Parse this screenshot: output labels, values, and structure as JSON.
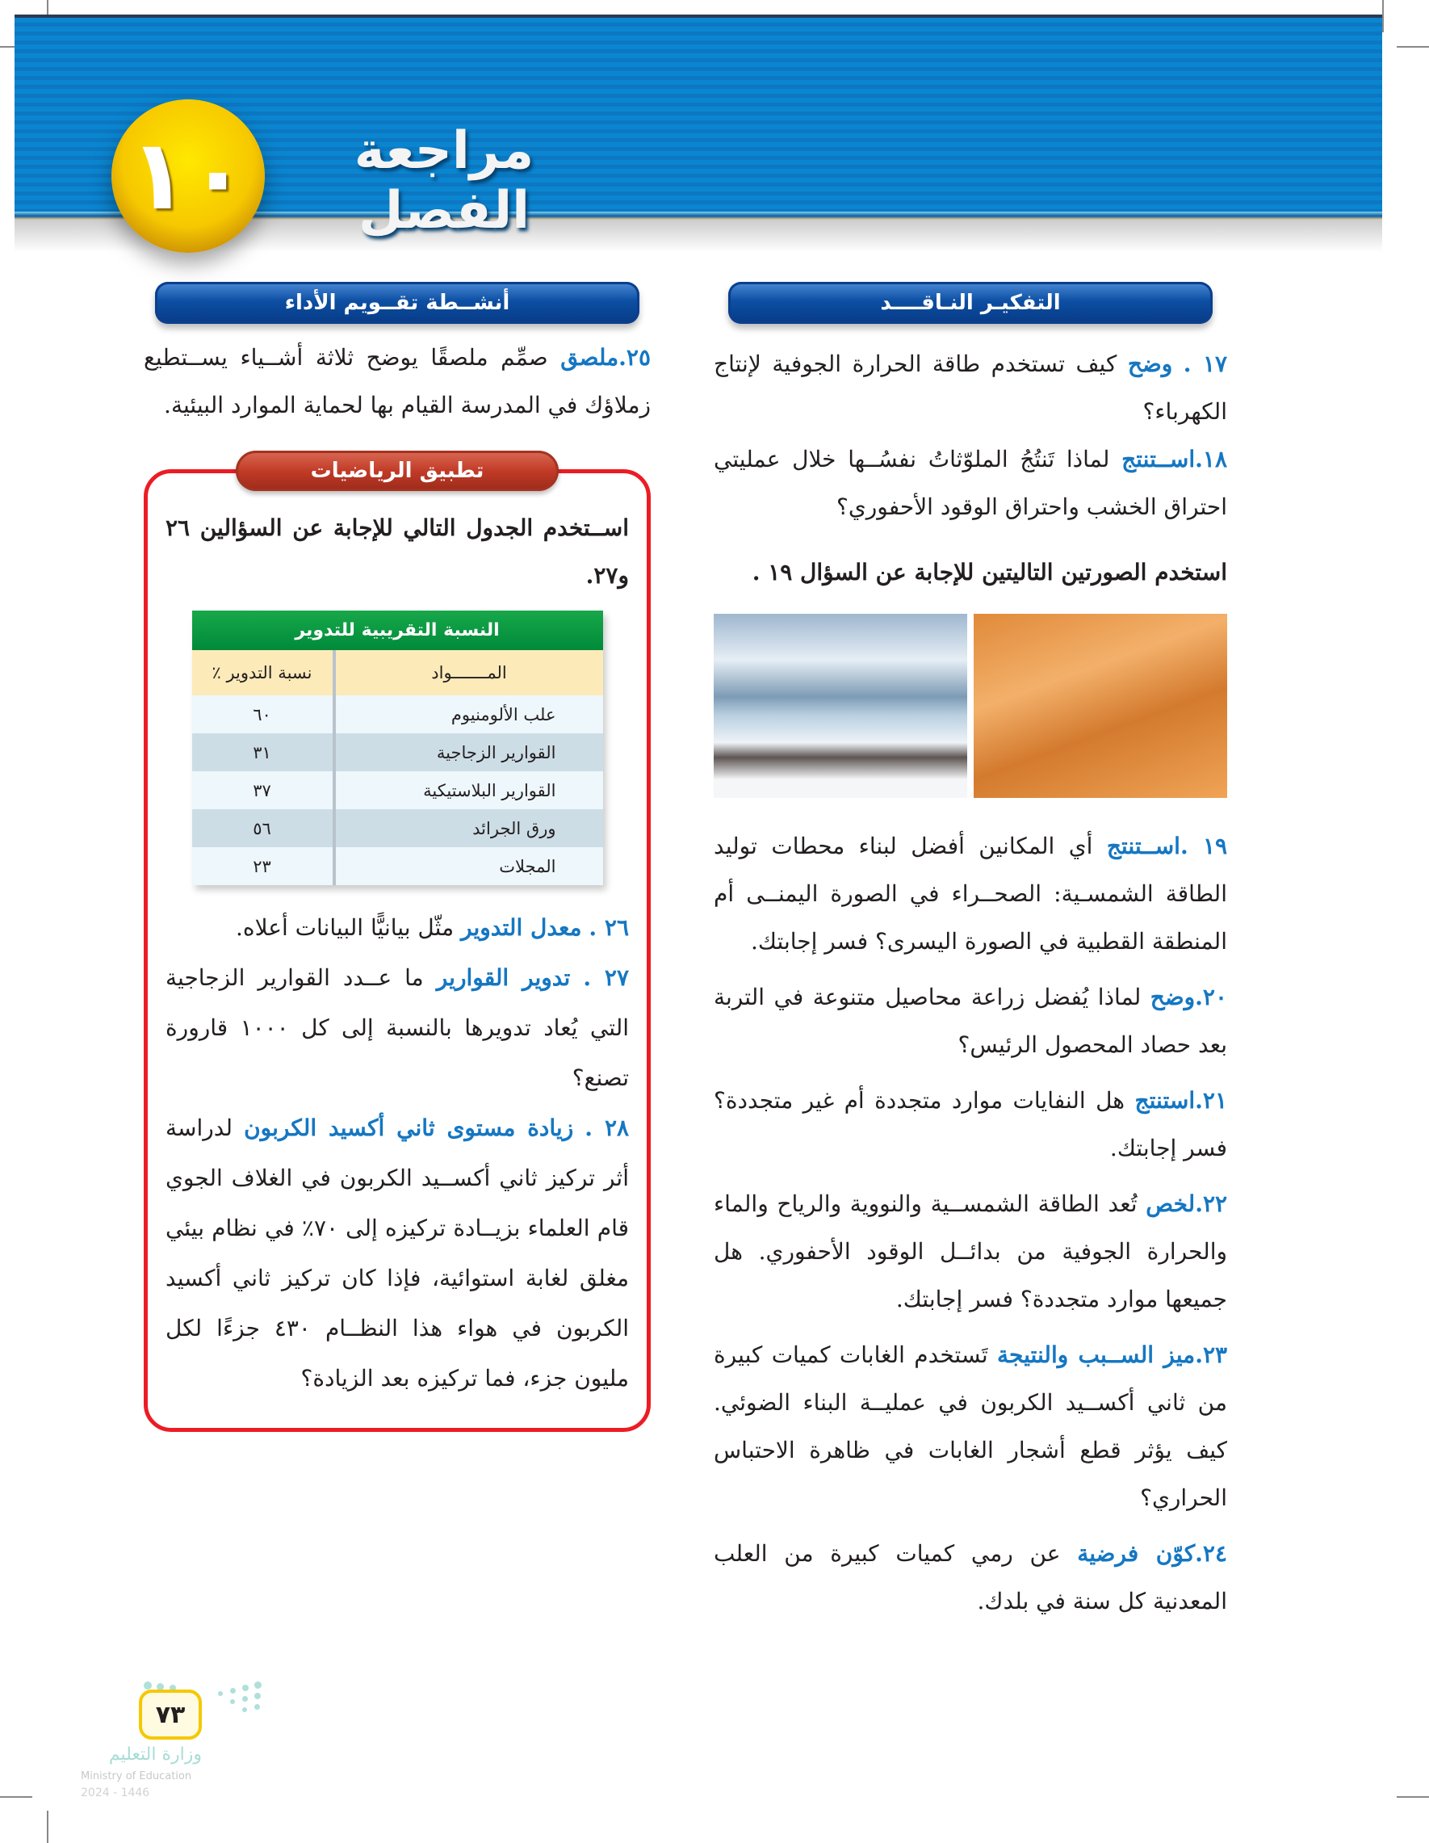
{
  "header": {
    "chapter_number": "١٠",
    "title": "مراجعة الفصل",
    "accent": "#0d77c2"
  },
  "right_section": {
    "title": "التفكيـر النـاقــــد",
    "questions": [
      {
        "num": "١٧ .",
        "verb": "وضح",
        "text": "كيف تستخدم طاقة الحرارة الجوفية لإنتاج الكهرباء؟"
      },
      {
        "num": "١٨.",
        "verb": "اســتنتج",
        "text": "لماذا تَنتُجُ  الملوّثاتُ نفسُــها خلال عمليتي احتراق الخشب واحتراق الوقود الأحفوري؟"
      }
    ],
    "images_intro": "استخدم الصورتين التاليتين للإجابة عن السؤال ١٩ .",
    "images": [
      {
        "name": "polar-penguins-photo"
      },
      {
        "name": "desert-dunes-photo"
      }
    ],
    "questions2": [
      {
        "num": "١٩ .",
        "verb": "اســتنتج",
        "text": "أي المكانين أفضل لبناء محطات توليد الطاقة الشمسـية: الصحــراء في الصورة اليمنــى أم المنطقة القطبية في الصورة اليسرى؟ فسر إجابتك."
      },
      {
        "num": "٢٠.",
        "verb": "وضح",
        "text": "لماذا يُفضل زراعة محاصيل متنوعة في التربة بعد حصاد المحصول الرئيس؟"
      },
      {
        "num": "٢١.",
        "verb": "استنتج",
        "text": "هل النفايات موارد متجددة أم غير متجددة؟ فسر إجابتك."
      },
      {
        "num": "٢٢.",
        "verb": "لخص",
        "text": "تُعد الطاقة الشمســية والنووية والرياح والماء والحرارة الجوفية من بدائــل الوقود الأحفوري. هل جميعها موارد متجددة؟ فسر إجابتك."
      },
      {
        "num": "٢٣.",
        "verb": "ميز الســبب والنتيجة",
        "text": "تَستخدم الغابات كميات كبيرة من ثاني أكســيد الكربون في عمليــة البناء الضوئي. كيف يؤثر قطع أشجار الغابات في ظاهرة الاحتباس الحراري؟"
      },
      {
        "num": "٢٤.",
        "verb": "كوّن فرضية",
        "text": "عن رمي كميات كبيرة من العلب المعدنية كل سنة في بلدك."
      }
    ]
  },
  "left_section": {
    "title": "أنشــطة تقــويم الأداء",
    "q25": {
      "num": "٢٥.",
      "verb": "ملصق",
      "text": "صمِّم ملصقًا يوضح ثلاثة أشــياء يســتطيع زملاؤك في المدرسة القيام بها لحماية الموارد البيئية."
    },
    "math": {
      "title": "تطبيق الرياضيات",
      "intro": "اســتخدم الجدول التالي للإجابة عن السؤالين ٢٦ و٢٧.",
      "table": {
        "title": "النسبة التقريبية للتدوير",
        "headers": [
          "المـــــــواد",
          "نسبة التدوير ٪"
        ],
        "rows": [
          [
            "علب الألومنيوم",
            "٦٠"
          ],
          [
            "القوارير الزجاجية",
            "٣١"
          ],
          [
            "القوارير البلاستيكية",
            "٣٧"
          ],
          [
            "ورق الجرائد",
            "٥٦"
          ],
          [
            "المجلات",
            "٢٣"
          ]
        ]
      },
      "questions": [
        {
          "num": "٢٦ .",
          "verb": "معدل التدوير",
          "text": "مثّل بيانيًّا البيانات أعلاه."
        },
        {
          "num": "٢٧ .",
          "verb": "تدوير القوارير",
          "text": "ما عــدد القوارير الزجاجية التي يُعاد تدويرها بالنسبة إلى كل ١٠٠٠ قارورة تصنع؟"
        },
        {
          "num": "٢٨ .",
          "verb": "زيادة مستوى ثاني أكسيد الكربون",
          "text": "لدراسة أثر تركيز ثاني أكســيد الكربون في الغلاف الجوي قام العلماء بزيــادة تركيزه إلى ٧٠٪ في نظام بيئي مغلق لغابة استوائية، فإذا كان تركيز ثاني أكسيد الكربون في هواء هذا النظــام ٤٣٠ جزءًا لكل مليون جزء، فما تركيزه بعد الزيادة؟"
        }
      ]
    }
  },
  "footer": {
    "page_number": "٧٣",
    "logo_ar": "وزارة التعليم",
    "logo_en": "Ministry of Education",
    "year": "2024 - 1446"
  }
}
